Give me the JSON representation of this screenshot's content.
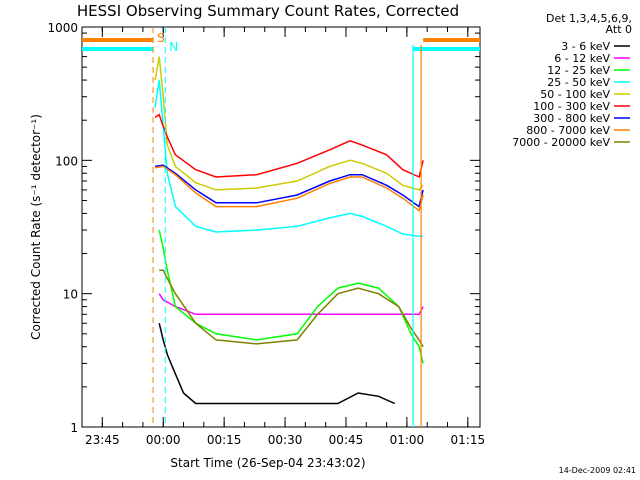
{
  "chart_data": {
    "type": "line",
    "title": "HESSI Observing Summary Count Rates, Corrected",
    "xlabel": "Start Time (26-Sep-04 23:43:02)",
    "ylabel": "Corrected Count Rate (s⁻¹ detector⁻¹)",
    "y_scale": "log",
    "ylim": [
      1,
      1000
    ],
    "x_unit": "minutes after 26-Sep-04 23:43:02",
    "xlim": [
      -3,
      95
    ],
    "x_ticks": [
      {
        "label": "23:45",
        "x": 2
      },
      {
        "label": "00:00",
        "x": 17
      },
      {
        "label": "00:15",
        "x": 32
      },
      {
        "label": "00:30",
        "x": 47
      },
      {
        "label": "00:45",
        "x": 62
      },
      {
        "label": "01:00",
        "x": 77
      },
      {
        "label": "01:15",
        "x": 92
      }
    ],
    "y_ticks": [
      {
        "label": "1",
        "y": 1
      },
      {
        "label": "10",
        "y": 10
      },
      {
        "label": "100",
        "y": 100
      },
      {
        "label": "1000",
        "y": 1000
      }
    ],
    "legend_header": [
      "Det 1,3,4,5,6,9,",
      "Att 0"
    ],
    "legend_position": "right, outside",
    "series": [
      {
        "name": "3 - 6 keV",
        "color": "#000000",
        "x": [
          16,
          17,
          18,
          20,
          22,
          25,
          60,
          65,
          70,
          74
        ],
        "y": [
          6,
          4.5,
          3.5,
          2.5,
          1.8,
          1.5,
          1.5,
          1.8,
          1.7,
          1.5
        ]
      },
      {
        "name": "6 - 12 keV",
        "color": "#ff00ff",
        "x": [
          16,
          17,
          20,
          25,
          30,
          40,
          50,
          60,
          70,
          76,
          80,
          81
        ],
        "y": [
          10,
          9,
          8,
          7,
          7,
          7,
          7,
          7,
          7,
          7,
          7,
          8
        ]
      },
      {
        "name": "12 - 25 keV",
        "color": "#00ff00",
        "x": [
          16,
          17,
          18,
          20,
          25,
          30,
          40,
          50,
          55,
          60,
          65,
          70,
          75,
          78,
          80,
          81
        ],
        "y": [
          30,
          22,
          15,
          8,
          6,
          5,
          4.5,
          5,
          8,
          11,
          12,
          11,
          8,
          5,
          4,
          3
        ]
      },
      {
        "name": "25 - 50 keV",
        "color": "#00ffff",
        "x": [
          15,
          16,
          17,
          18,
          20,
          25,
          30,
          40,
          50,
          58,
          63,
          66,
          72,
          76,
          80,
          81
        ],
        "y": [
          250,
          400,
          180,
          80,
          45,
          32,
          29,
          30,
          32,
          37,
          40,
          38,
          32,
          28,
          27,
          27
        ]
      },
      {
        "name": "50 - 100 keV",
        "color": "#cccc00",
        "x": [
          15,
          16,
          17,
          18,
          20,
          25,
          30,
          40,
          50,
          58,
          63,
          66,
          72,
          76,
          80,
          81
        ],
        "y": [
          400,
          600,
          300,
          130,
          90,
          68,
          60,
          62,
          70,
          90,
          100,
          95,
          80,
          65,
          60,
          65
        ]
      },
      {
        "name": "100 - 300 keV",
        "color": "#ff0000",
        "x": [
          15,
          16,
          17,
          18,
          20,
          25,
          30,
          40,
          50,
          58,
          63,
          66,
          72,
          76,
          80,
          81
        ],
        "y": [
          210,
          220,
          180,
          150,
          110,
          85,
          75,
          78,
          95,
          120,
          140,
          130,
          110,
          85,
          75,
          100
        ]
      },
      {
        "name": "300 - 800 keV",
        "color": "#0000ff",
        "x": [
          15,
          17,
          20,
          25,
          30,
          40,
          50,
          58,
          63,
          66,
          72,
          76,
          80,
          81
        ],
        "y": [
          90,
          92,
          80,
          60,
          48,
          48,
          55,
          70,
          78,
          78,
          65,
          55,
          45,
          60
        ]
      },
      {
        "name": "800 - 7000 keV",
        "color": "#ff8000",
        "x": [
          15,
          17,
          20,
          25,
          30,
          40,
          50,
          58,
          63,
          66,
          72,
          76,
          80,
          81
        ],
        "y": [
          88,
          90,
          78,
          57,
          45,
          45,
          52,
          67,
          75,
          75,
          62,
          52,
          42,
          55
        ]
      },
      {
        "name": "7000 - 20000 keV",
        "color": "#808000",
        "x": [
          16,
          17,
          18,
          20,
          25,
          30,
          40,
          50,
          55,
          60,
          65,
          70,
          75,
          78,
          80,
          81
        ],
        "y": [
          15,
          15,
          13,
          10,
          6,
          4.5,
          4.2,
          4.5,
          7,
          10,
          11,
          10,
          8,
          5.5,
          4.5,
          4
        ]
      }
    ],
    "markers": [
      {
        "label": "S",
        "color": "#ff8000",
        "x": 14.5,
        "x_end": 80.5,
        "style": "dashed"
      },
      {
        "label": "N",
        "color": "#00ffff",
        "x": 17.5,
        "x_end": 78.5,
        "style": "dashed"
      }
    ],
    "bars": [
      {
        "color": "#ff8000",
        "x_ranges": [
          [
            -3,
            14.5
          ],
          [
            81,
            95
          ]
        ]
      },
      {
        "color": "#00ffff",
        "x_ranges": [
          [
            -3,
            14.5
          ],
          [
            78.5,
            95
          ]
        ]
      }
    ],
    "footer": "14-Dec-2009 02:41"
  }
}
